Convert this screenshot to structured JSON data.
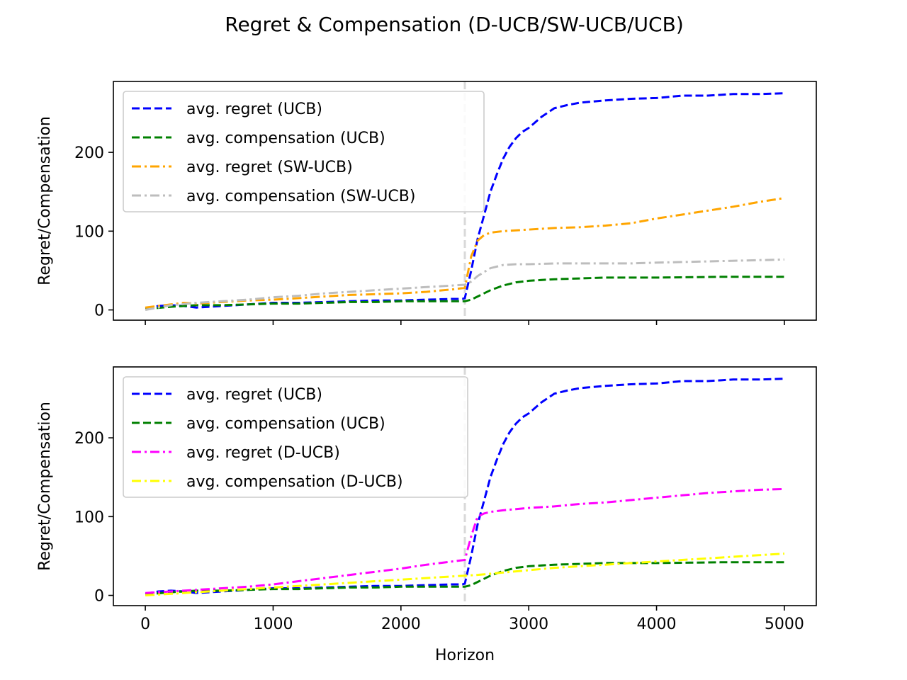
{
  "figure": {
    "title": "Regret & Compensation (D-UCB/SW-UCB/UCB)",
    "xlabel": "Horizon",
    "colors": {
      "ucb_regret": "#0000ff",
      "ucb_comp": "#008000",
      "sw_regret": "#ffa500",
      "sw_comp": "#bdbdbd",
      "d_regret": "#ff00ff",
      "d_comp": "#ffff00",
      "change_line": "#d9d9d9"
    }
  },
  "chart_data": [
    {
      "type": "line",
      "title": "",
      "xlabel": "",
      "ylabel": "Regret/Compensation",
      "xlim": [
        -250,
        5250
      ],
      "ylim": [
        -13,
        290
      ],
      "xticks": [
        0,
        1000,
        2000,
        3000,
        4000,
        5000
      ],
      "yticks": [
        0,
        100,
        200
      ],
      "show_xtick_labels": false,
      "vline_x": 2500,
      "legend_position": "upper-left",
      "series": [
        {
          "name": "avg. regret (UCB)",
          "color": "#0000ff",
          "style": "dashed",
          "x": [
            0,
            100,
            200,
            300,
            400,
            500,
            600,
            800,
            1000,
            1200,
            1400,
            1600,
            1800,
            2000,
            2200,
            2400,
            2480,
            2500,
            2550,
            2600,
            2650,
            2700,
            2750,
            2800,
            2850,
            2900,
            2950,
            3000,
            3100,
            3200,
            3300,
            3400,
            3600,
            3800,
            4000,
            4200,
            4400,
            4600,
            4800,
            5000
          ],
          "values": [
            2,
            5,
            6,
            5,
            3,
            4,
            5,
            7,
            9,
            9,
            10,
            11,
            12,
            12,
            13,
            14,
            14,
            15,
            50,
            90,
            120,
            150,
            172,
            192,
            207,
            218,
            226,
            231,
            245,
            256,
            260,
            263,
            266,
            268,
            269,
            272,
            272,
            274,
            274,
            275
          ]
        },
        {
          "name": "avg. compensation (UCB)",
          "color": "#008000",
          "style": "dashed",
          "x": [
            0,
            200,
            400,
            600,
            800,
            1000,
            1200,
            1400,
            1600,
            1800,
            2000,
            2200,
            2400,
            2500,
            2550,
            2600,
            2700,
            2800,
            2900,
            3000,
            3200,
            3400,
            3600,
            3800,
            4000,
            4500,
            5000
          ],
          "values": [
            1,
            4,
            6,
            6,
            7,
            8,
            8,
            9,
            10,
            10,
            11,
            11,
            11,
            11,
            13,
            17,
            25,
            31,
            35,
            37,
            39,
            40,
            41,
            41,
            41,
            42,
            42
          ]
        },
        {
          "name": "avg. regret (SW-UCB)",
          "color": "#ffa500",
          "style": "dashdot",
          "x": [
            0,
            200,
            300,
            400,
            600,
            800,
            1000,
            1200,
            1400,
            1600,
            1800,
            2000,
            2200,
            2400,
            2500,
            2550,
            2600,
            2650,
            2700,
            2800,
            3000,
            3200,
            3400,
            3600,
            3800,
            4000,
            4200,
            4400,
            4600,
            4800,
            5000
          ],
          "values": [
            3,
            7,
            9,
            8,
            10,
            12,
            13,
            15,
            17,
            19,
            20,
            21,
            23,
            26,
            28,
            68,
            88,
            95,
            98,
            100,
            102,
            104,
            105,
            107,
            110,
            116,
            121,
            126,
            131,
            137,
            142
          ]
        },
        {
          "name": "avg. compensation (SW-UCB)",
          "color": "#bdbdbd",
          "style": "dashdot",
          "x": [
            0,
            200,
            400,
            600,
            800,
            1000,
            1200,
            1400,
            1600,
            1800,
            2000,
            2200,
            2400,
            2500,
            2550,
            2600,
            2700,
            2800,
            2900,
            3000,
            3200,
            3400,
            3600,
            3800,
            4000,
            4500,
            5000
          ],
          "values": [
            0,
            6,
            9,
            11,
            13,
            16,
            18,
            21,
            23,
            25,
            27,
            29,
            31,
            32,
            36,
            43,
            53,
            57,
            58,
            58,
            59,
            59,
            59,
            59,
            60,
            62,
            64
          ]
        }
      ]
    },
    {
      "type": "line",
      "title": "",
      "xlabel": "Horizon",
      "ylabel": "Regret/Compensation",
      "xlim": [
        -250,
        5250
      ],
      "ylim": [
        -13,
        290
      ],
      "xticks": [
        0,
        1000,
        2000,
        3000,
        4000,
        5000
      ],
      "yticks": [
        0,
        100,
        200
      ],
      "show_xtick_labels": true,
      "vline_x": 2500,
      "legend_position": "upper-left",
      "series": [
        {
          "name": "avg. regret (UCB)",
          "color": "#0000ff",
          "style": "dashed",
          "x": [
            0,
            100,
            200,
            300,
            400,
            500,
            600,
            800,
            1000,
            1200,
            1400,
            1600,
            1800,
            2000,
            2200,
            2400,
            2480,
            2500,
            2550,
            2600,
            2650,
            2700,
            2750,
            2800,
            2850,
            2900,
            2950,
            3000,
            3100,
            3200,
            3300,
            3400,
            3600,
            3800,
            4000,
            4200,
            4400,
            4600,
            4800,
            5000
          ],
          "values": [
            2,
            5,
            6,
            5,
            3,
            4,
            5,
            7,
            9,
            9,
            10,
            11,
            12,
            12,
            13,
            14,
            14,
            15,
            50,
            90,
            120,
            150,
            172,
            192,
            207,
            218,
            226,
            231,
            245,
            256,
            260,
            263,
            266,
            268,
            269,
            272,
            272,
            274,
            274,
            275
          ]
        },
        {
          "name": "avg. compensation (UCB)",
          "color": "#008000",
          "style": "dashed",
          "x": [
            0,
            200,
            400,
            600,
            800,
            1000,
            1200,
            1400,
            1600,
            1800,
            2000,
            2200,
            2400,
            2500,
            2550,
            2600,
            2700,
            2800,
            2900,
            3000,
            3200,
            3400,
            3600,
            3800,
            4000,
            4500,
            5000
          ],
          "values": [
            1,
            4,
            6,
            6,
            7,
            8,
            8,
            9,
            10,
            10,
            11,
            11,
            11,
            11,
            13,
            17,
            25,
            31,
            35,
            37,
            39,
            40,
            41,
            41,
            41,
            42,
            42
          ]
        },
        {
          "name": "avg. regret (D-UCB)",
          "color": "#ff00ff",
          "style": "dashdot",
          "x": [
            0,
            200,
            400,
            600,
            800,
            1000,
            1200,
            1400,
            1600,
            1800,
            2000,
            2200,
            2400,
            2500,
            2550,
            2600,
            2650,
            2700,
            2800,
            3000,
            3200,
            3400,
            3600,
            3800,
            4000,
            4200,
            4400,
            4600,
            4800,
            5000
          ],
          "values": [
            3,
            5,
            7,
            9,
            11,
            14,
            18,
            22,
            26,
            30,
            34,
            39,
            43,
            45,
            75,
            100,
            104,
            106,
            108,
            111,
            113,
            116,
            118,
            121,
            124,
            127,
            130,
            132,
            134,
            135
          ]
        },
        {
          "name": "avg. compensation (D-UCB)",
          "color": "#ffff00",
          "style": "dashdot",
          "x": [
            0,
            500,
            1000,
            1500,
            2000,
            2500,
            2600,
            2800,
            3000,
            3200,
            3400,
            3600,
            3800,
            4000,
            4200,
            4400,
            4600,
            4800,
            5000
          ],
          "values": [
            0,
            5,
            10,
            15,
            20,
            25,
            26,
            29,
            32,
            35,
            37,
            39,
            41,
            43,
            45,
            47,
            49,
            51,
            53
          ]
        }
      ]
    }
  ]
}
